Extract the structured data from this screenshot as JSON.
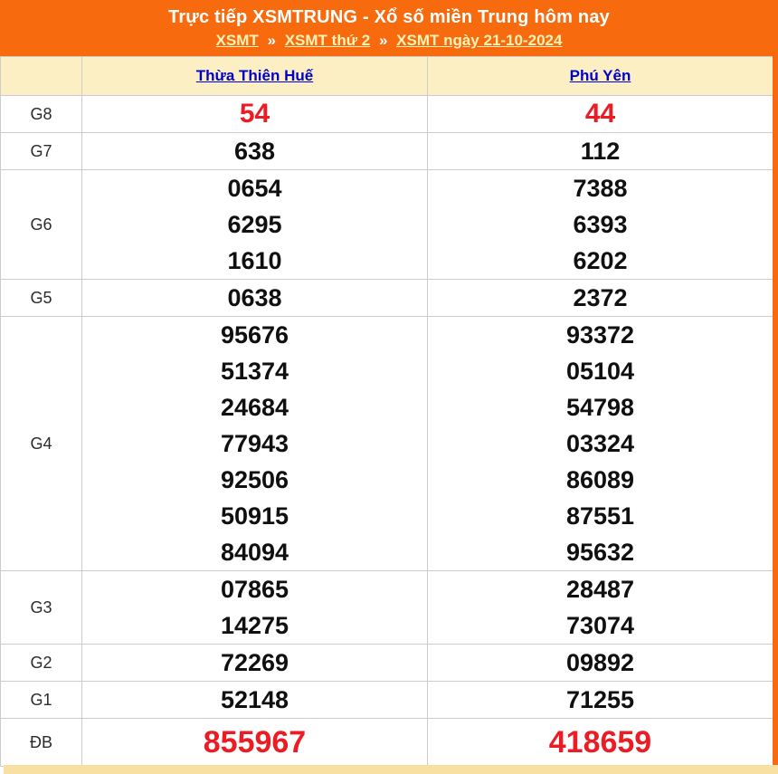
{
  "header": {
    "title": "Trực tiếp XSMTRUNG - Xổ số miền Trung hôm nay",
    "separator": "»",
    "breadcrumb": [
      {
        "label": "XSMT"
      },
      {
        "label": "XSMT thứ 2"
      },
      {
        "label": "XSMT ngày 21-10-2024"
      }
    ]
  },
  "table": {
    "provinces": [
      "Thừa Thiên Huế",
      "Phú Yên"
    ],
    "rows": [
      {
        "prize": "G8",
        "highlight": true,
        "big": false,
        "values": [
          [
            "54"
          ],
          [
            "44"
          ]
        ]
      },
      {
        "prize": "G7",
        "highlight": false,
        "big": false,
        "values": [
          [
            "638"
          ],
          [
            "112"
          ]
        ]
      },
      {
        "prize": "G6",
        "highlight": false,
        "big": false,
        "values": [
          [
            "0654",
            "6295",
            "1610"
          ],
          [
            "7388",
            "6393",
            "6202"
          ]
        ]
      },
      {
        "prize": "G5",
        "highlight": false,
        "big": false,
        "values": [
          [
            "0638"
          ],
          [
            "2372"
          ]
        ]
      },
      {
        "prize": "G4",
        "highlight": false,
        "big": false,
        "values": [
          [
            "95676",
            "51374",
            "24684",
            "77943",
            "92506",
            "50915",
            "84094"
          ],
          [
            "93372",
            "05104",
            "54798",
            "03324",
            "86089",
            "87551",
            "95632"
          ]
        ]
      },
      {
        "prize": "G3",
        "highlight": false,
        "big": false,
        "values": [
          [
            "07865",
            "14275"
          ],
          [
            "28487",
            "73074"
          ]
        ]
      },
      {
        "prize": "G2",
        "highlight": false,
        "big": false,
        "values": [
          [
            "72269"
          ],
          [
            "09892"
          ]
        ]
      },
      {
        "prize": "G1",
        "highlight": false,
        "big": false,
        "values": [
          [
            "52148"
          ],
          [
            "71255"
          ]
        ]
      },
      {
        "prize": "ĐB",
        "highlight": true,
        "big": true,
        "values": [
          [
            "855967"
          ],
          [
            "418659"
          ]
        ]
      }
    ]
  },
  "colors": {
    "accent_orange": "#F76B0E",
    "header_cream": "#FBEFC3",
    "bottom_strip": "#F8E0A2",
    "link_blue": "#0000CC",
    "highlight_red": "#EC1C24",
    "number_black": "#101010",
    "border_gray": "#CCCCCC"
  }
}
